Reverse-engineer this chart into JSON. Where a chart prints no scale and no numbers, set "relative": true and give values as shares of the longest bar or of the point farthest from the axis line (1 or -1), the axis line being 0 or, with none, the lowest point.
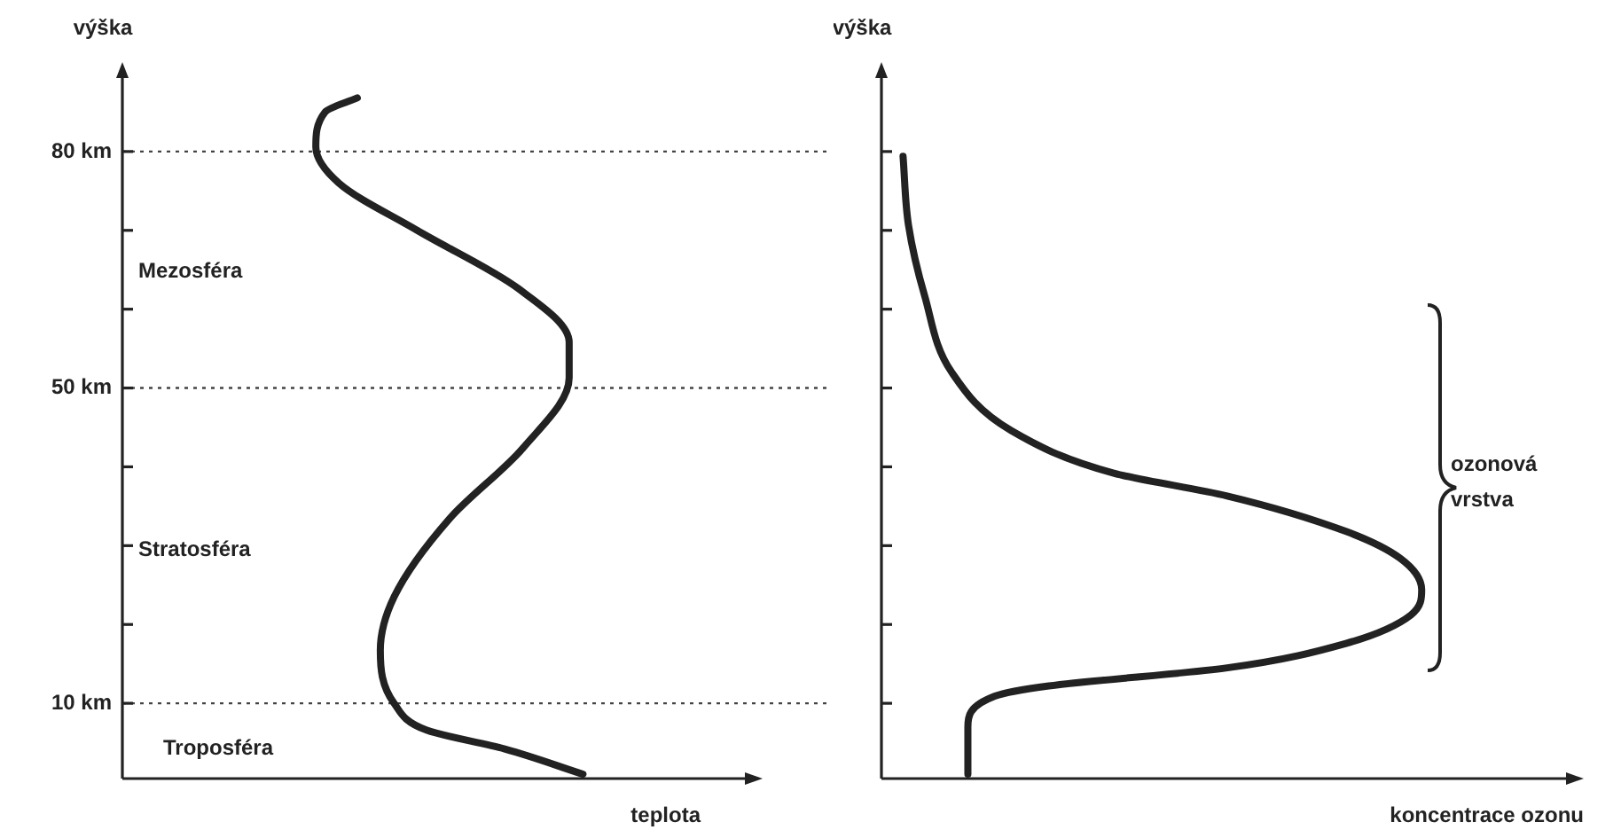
{
  "chart_data": [
    {
      "type": "line",
      "relative": true,
      "ylabel": "výška",
      "xlabel": "teplota",
      "ylim": [
        0,
        90
      ],
      "yticks": [
        {
          "value": 10,
          "label": "10 km"
        },
        {
          "value": 20,
          "label": null
        },
        {
          "value": 30,
          "label": null
        },
        {
          "value": 40,
          "label": null
        },
        {
          "value": 50,
          "label": "50 km"
        },
        {
          "value": 60,
          "label": null
        },
        {
          "value": 70,
          "label": null
        },
        {
          "value": 80,
          "label": "80 km"
        }
      ],
      "series": [
        {
          "color": "#222222",
          "x": [
            1,
            4.2,
            6.6,
            10,
            16.7,
            23.5,
            33.4,
            42.4,
            51.3,
            55.8,
            62.6,
            70,
            76,
            80.6,
            85,
            86.8
          ],
          "values": [
            1,
            0.83,
            0.66,
            0.59,
            0.56,
            0.59,
            0.71,
            0.87,
            0.97,
            0.97,
            0.86,
            0.64,
            0.47,
            0.42,
            0.44,
            0.51
          ]
        }
      ],
      "ref_lines": [
        {
          "axis": "y",
          "value": 10,
          "line_style": "dotted",
          "color": "#444444"
        },
        {
          "axis": "y",
          "value": 50,
          "line_style": "dotted",
          "color": "#444444"
        },
        {
          "axis": "y",
          "value": 80,
          "line_style": "dotted",
          "color": "#444444"
        }
      ],
      "annotations": [
        "Mezosféra",
        "Stratosféra",
        "Troposféra"
      ],
      "grid": false,
      "legend": false,
      "marker": "none",
      "line_style": "solid",
      "tick_labels": "y",
      "orientation": "horizontal"
    },
    {
      "type": "line",
      "relative": true,
      "ylabel": "výška",
      "xlabel": "koncentrace ozonu",
      "ylim": [
        0,
        90
      ],
      "yticks": [
        {
          "value": 10,
          "label": null
        },
        {
          "value": 20,
          "label": null
        },
        {
          "value": 30,
          "label": null
        },
        {
          "value": 40,
          "label": null
        },
        {
          "value": 50,
          "label": null
        },
        {
          "value": 60,
          "label": null
        },
        {
          "value": 70,
          "label": null
        },
        {
          "value": 80,
          "label": null
        }
      ],
      "series": [
        {
          "color": "#222222",
          "x": [
            1,
            7,
            10.9,
            12.2,
            14.5,
            17.6,
            21.2,
            24.4,
            28.4,
            31.8,
            36.3,
            39.2,
            44.6,
            52,
            61.7,
            70.7,
            79.4
          ],
          "values": [
            0.16,
            0.16,
            0.21,
            0.31,
            0.64,
            0.86,
            0.98,
            1,
            0.96,
            0.86,
            0.64,
            0.43,
            0.24,
            0.13,
            0.08,
            0.05,
            0.04
          ]
        }
      ],
      "annotations": [
        "ozonová vrstva"
      ],
      "grid": false,
      "legend": false,
      "marker": "none",
      "line_style": "solid",
      "tick_labels": false,
      "orientation": "horizontal"
    }
  ]
}
